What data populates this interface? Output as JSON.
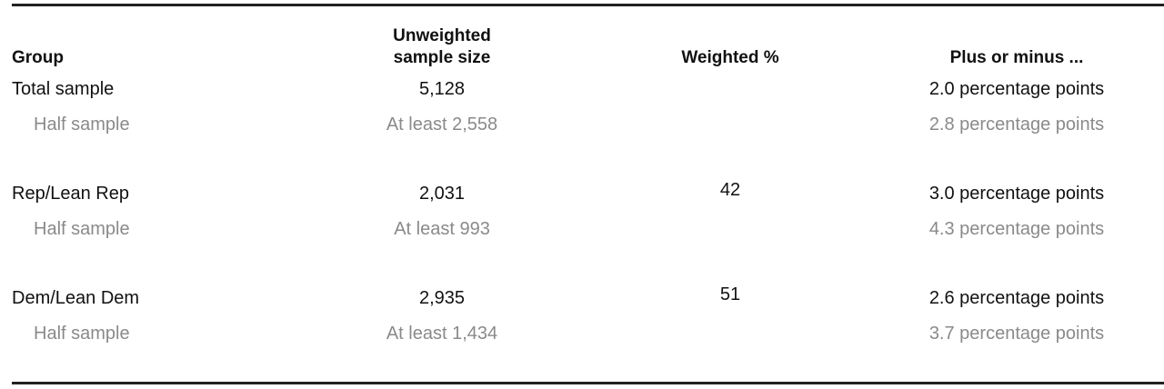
{
  "table": {
    "header": {
      "group": "Group",
      "sample": "Unweighted sample size",
      "weighted": "Weighted %",
      "margin": "Plus or minus ..."
    },
    "groups": [
      {
        "group": "Total sample",
        "sample": "5,128",
        "margin": "2.0 percentage points",
        "half": {
          "group": "Half sample",
          "sample": "At least 2,558",
          "margin": "2.8 percentage points"
        }
      },
      {
        "group": "Rep/Lean Rep",
        "sample": "2,031",
        "weighted": 42,
        "margin": "3.0 percentage points",
        "half": {
          "group": "Half sample",
          "sample": "At least 993",
          "margin": "4.3 percentage points"
        }
      },
      {
        "group": "Dem/Lean Dem",
        "sample": "2,935",
        "weighted": 51,
        "margin": "2.6 percentage points",
        "half": {
          "group": "Half sample",
          "sample": "At least 1,434",
          "margin": "3.7 percentage points"
        }
      }
    ]
  }
}
